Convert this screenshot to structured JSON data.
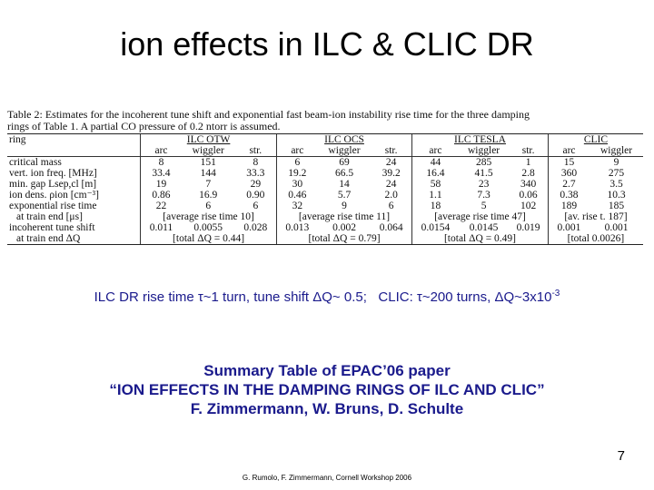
{
  "slide": {
    "title": "ion effects in ILC & CLIC DR",
    "page_number": "7",
    "footer": "G. Rumolo, F. Zimmermann, Cornell Workshop 2006"
  },
  "table": {
    "caption_line1": "Table 2: Estimates for the incoherent tune shift and exponential fast beam-ion instability rise time for the three damping",
    "caption_line2": "rings of Table 1. A partial CO pressure of 0.2 ntorr is assumed.",
    "ring_label": "ring",
    "groups": [
      "ILC OTW",
      "ILC OCS",
      "ILC TESLA",
      "CLIC"
    ],
    "subheads": [
      "arc",
      "wiggler",
      "str.",
      "arc",
      "wiggler",
      "str.",
      "arc",
      "wiggler",
      "str.",
      "arc",
      "wiggler"
    ],
    "rows": [
      {
        "label": "critical mass",
        "values": [
          "8",
          "151",
          "8",
          "6",
          "69",
          "24",
          "44",
          "285",
          "1",
          "15",
          "9"
        ]
      },
      {
        "label": "vert. ion freq. [MHz]",
        "values": [
          "33.4",
          "144",
          "33.3",
          "19.2",
          "66.5",
          "39.2",
          "16.4",
          "41.5",
          "2.8",
          "360",
          "275"
        ]
      },
      {
        "label": "min. gap Lsep,cl [m]",
        "values": [
          "19",
          "7",
          "29",
          "30",
          "14",
          "24",
          "58",
          "23",
          "340",
          "2.7",
          "3.5"
        ]
      },
      {
        "label": "ion dens. ρion [cm⁻³]",
        "values": [
          "0.86",
          "16.9",
          "0.90",
          "0.46",
          "5.7",
          "2.0",
          "1.1",
          "7.3",
          "0.06",
          "0.38",
          "10.3"
        ]
      },
      {
        "label": "exponential rise time",
        "values": [
          "22",
          "6",
          "6",
          "32",
          "9",
          "6",
          "18",
          "5",
          "102",
          "189",
          "185"
        ]
      }
    ],
    "at_train_end_mu_label": "at train end [μs]",
    "avg_rise": [
      "[average rise time 10]",
      "[average rise time 11]",
      "[average rise time 47]",
      "[av. rise t. 187]"
    ],
    "tune_shift_label": "incoherent tune shift",
    "tune_shift_values": [
      "0.011",
      "0.0055",
      "0.028",
      "0.013",
      "0.002",
      "0.064",
      "0.0154",
      "0.0145",
      "0.019",
      "0.001",
      "0.001"
    ],
    "at_train_end_q_label": "at train end ΔQ",
    "totals": [
      "[total ΔQ = 0.44]",
      "[total ΔQ = 0.79]",
      "[total ΔQ = 0.49]",
      "[total 0.0026]"
    ]
  },
  "summary": {
    "ilc_part": "ILC DR rise time τ~1 turn, tune shift ΔQ~ 0.5;",
    "clic_part": "CLIC: τ~200 turns, ΔQ~3x10",
    "clic_exponent": "-3"
  },
  "paper": {
    "line1": "Summary Table of EPAC’06 paper",
    "line2": "“ION EFFECTS IN THE DAMPING RINGS OF ILC AND CLIC”",
    "line3": "F. Zimmermann, W. Bruns, D. Schulte"
  }
}
